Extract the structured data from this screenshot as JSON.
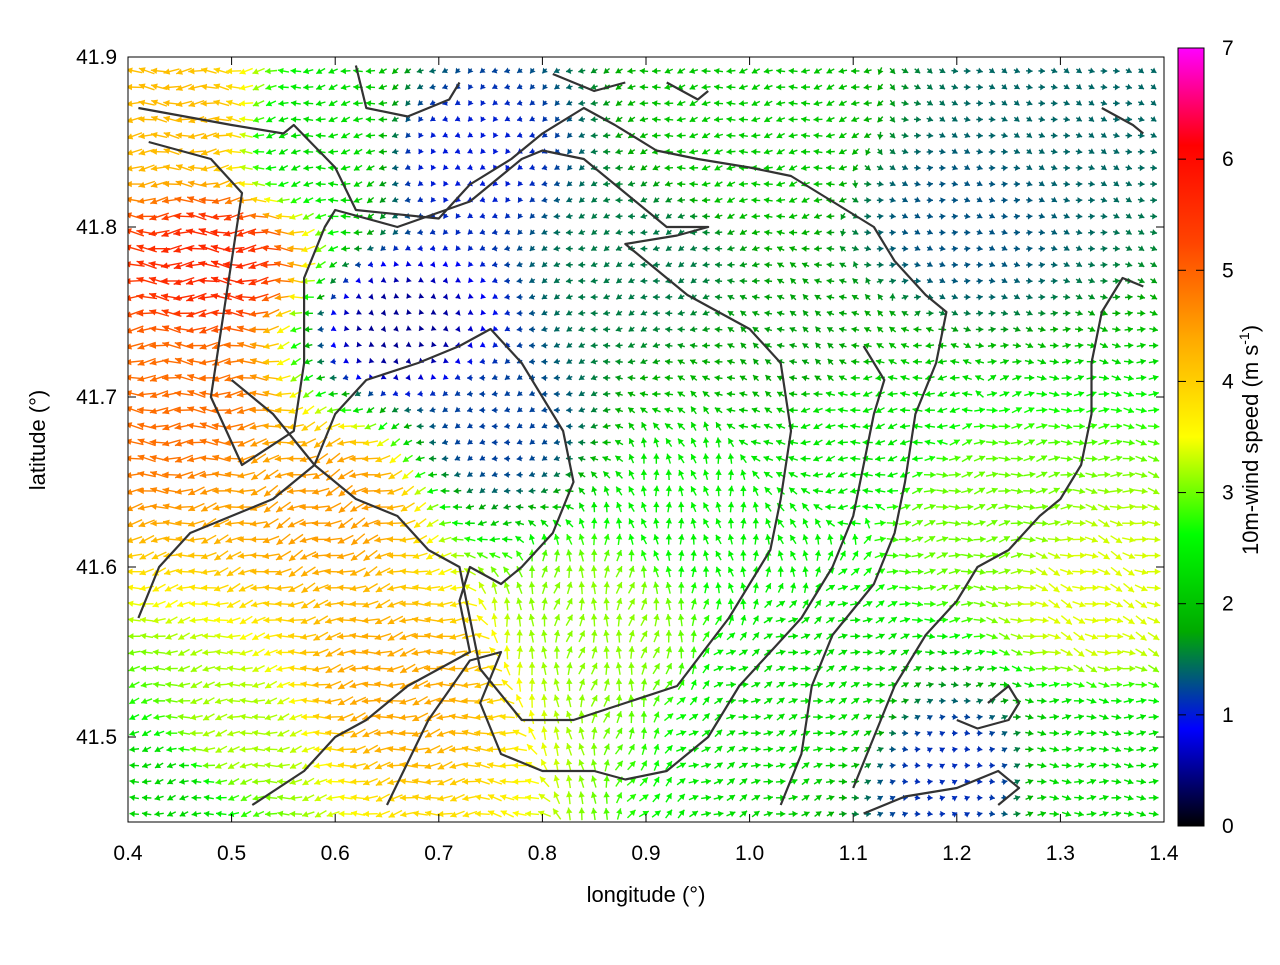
{
  "chart_data": {
    "type": "vector-field",
    "xlabel": "longitude (°)",
    "ylabel": "latitude (°)",
    "xlim": [
      0.4,
      1.4
    ],
    "ylim": [
      41.45,
      41.9
    ],
    "xticks": [
      "0.4",
      "0.5",
      "0.6",
      "0.7",
      "0.8",
      "0.9",
      "1.0",
      "1.1",
      "1.2",
      "1.3",
      "1.4"
    ],
    "yticks": [
      "41.5",
      "41.6",
      "41.7",
      "41.8",
      "41.9"
    ],
    "colorbar": {
      "label_main": "10m-wind speed (m s",
      "label_sup": "-1",
      "label_close": ")",
      "range": [
        0,
        7
      ],
      "ticks": [
        "0",
        "1",
        "2",
        "3",
        "4",
        "5",
        "6",
        "7"
      ],
      "stops": [
        "#000000",
        "#0000ff",
        "#00aa00",
        "#00ff00",
        "#ffff00",
        "#ffaa00",
        "#ff4400",
        "#ff0000",
        "#ff00ff"
      ]
    },
    "grid_step": [
      0.012,
      0.0095
    ],
    "wind_regions": [
      {
        "lon": 0.48,
        "lat": 41.78,
        "speed": 5.6,
        "dir_deg": 180
      },
      {
        "lon": 0.45,
        "lat": 41.7,
        "speed": 4.9,
        "dir_deg": 180
      },
      {
        "lon": 0.45,
        "lat": 41.86,
        "speed": 4.2,
        "dir_deg": 180
      },
      {
        "lon": 0.6,
        "lat": 41.64,
        "speed": 4.5,
        "dir_deg": 200
      },
      {
        "lon": 0.65,
        "lat": 41.53,
        "speed": 4.4,
        "dir_deg": 190
      },
      {
        "lon": 0.5,
        "lat": 41.5,
        "speed": 3.2,
        "dir_deg": 190
      },
      {
        "lon": 0.43,
        "lat": 41.47,
        "speed": 2.2,
        "dir_deg": 190
      },
      {
        "lon": 0.58,
        "lat": 41.85,
        "speed": 2.3,
        "dir_deg": 190
      },
      {
        "lon": 0.66,
        "lat": 41.74,
        "speed": 0.5,
        "dir_deg": 210
      },
      {
        "lon": 0.72,
        "lat": 41.84,
        "speed": 1.0,
        "dir_deg": 220
      },
      {
        "lon": 0.75,
        "lat": 41.68,
        "speed": 1.2,
        "dir_deg": 200
      },
      {
        "lon": 0.86,
        "lat": 41.57,
        "speed": 3.1,
        "dir_deg": 80
      },
      {
        "lon": 0.9,
        "lat": 41.78,
        "speed": 1.5,
        "dir_deg": 200
      },
      {
        "lon": 0.95,
        "lat": 41.63,
        "speed": 2.5,
        "dir_deg": 100
      },
      {
        "lon": 1.0,
        "lat": 41.85,
        "speed": 2.1,
        "dir_deg": 190
      },
      {
        "lon": 1.05,
        "lat": 41.73,
        "speed": 1.7,
        "dir_deg": 150
      },
      {
        "lon": 1.1,
        "lat": 41.68,
        "speed": 2.4,
        "dir_deg": 190
      },
      {
        "lon": 1.05,
        "lat": 41.52,
        "speed": 2.3,
        "dir_deg": 20
      },
      {
        "lon": 1.2,
        "lat": 41.8,
        "speed": 1.3,
        "dir_deg": 350
      },
      {
        "lon": 1.22,
        "lat": 41.63,
        "speed": 3.0,
        "dir_deg": 10
      },
      {
        "lon": 1.33,
        "lat": 41.58,
        "speed": 3.4,
        "dir_deg": 340
      },
      {
        "lon": 1.2,
        "lat": 41.48,
        "speed": 1.1,
        "dir_deg": 10
      },
      {
        "lon": 1.33,
        "lat": 41.48,
        "speed": 2.3,
        "dir_deg": 0
      },
      {
        "lon": 1.3,
        "lat": 41.88,
        "speed": 1.4,
        "dir_deg": 340
      }
    ],
    "boundary_lines": [
      [
        [
          0.41,
          41.87
        ],
        [
          0.5,
          41.86
        ],
        [
          0.55,
          41.855
        ],
        [
          0.56,
          41.86
        ],
        [
          0.6,
          41.835
        ],
        [
          0.62,
          41.81
        ],
        [
          0.7,
          41.805
        ],
        [
          0.73,
          41.825
        ],
        [
          0.77,
          41.84
        ],
        [
          0.8,
          41.855
        ],
        [
          0.84,
          41.87
        ],
        [
          0.87,
          41.86
        ],
        [
          0.91,
          41.845
        ],
        [
          0.95,
          41.84
        ],
        [
          1.0,
          41.835
        ],
        [
          1.04,
          41.83
        ],
        [
          1.08,
          41.815
        ],
        [
          1.12,
          41.8
        ],
        [
          1.14,
          41.78
        ],
        [
          1.17,
          41.76
        ],
        [
          1.19,
          41.75
        ],
        [
          1.18,
          41.72
        ],
        [
          1.16,
          41.69
        ],
        [
          1.15,
          41.65
        ],
        [
          1.14,
          41.62
        ],
        [
          1.12,
          41.59
        ],
        [
          1.08,
          41.56
        ],
        [
          1.06,
          41.53
        ],
        [
          1.05,
          41.49
        ],
        [
          1.03,
          41.46
        ]
      ],
      [
        [
          0.42,
          41.85
        ],
        [
          0.48,
          41.84
        ],
        [
          0.51,
          41.82
        ],
        [
          0.5,
          41.78
        ],
        [
          0.49,
          41.74
        ],
        [
          0.48,
          41.7
        ],
        [
          0.51,
          41.66
        ],
        [
          0.56,
          41.68
        ],
        [
          0.57,
          41.72
        ],
        [
          0.57,
          41.77
        ],
        [
          0.59,
          41.8
        ],
        [
          0.6,
          41.81
        ],
        [
          0.66,
          41.8
        ],
        [
          0.73,
          41.815
        ],
        [
          0.76,
          41.83
        ],
        [
          0.78,
          41.84
        ],
        [
          0.8,
          41.845
        ],
        [
          0.84,
          41.84
        ],
        [
          0.88,
          41.82
        ],
        [
          0.92,
          41.8
        ],
        [
          0.96,
          41.8
        ],
        [
          0.93,
          41.795
        ],
        [
          0.88,
          41.79
        ],
        [
          0.9,
          41.78
        ],
        [
          0.94,
          41.76
        ],
        [
          0.97,
          41.75
        ],
        [
          1.0,
          41.74
        ],
        [
          1.03,
          41.72
        ],
        [
          1.04,
          41.68
        ],
        [
          1.03,
          41.64
        ],
        [
          1.02,
          41.61
        ],
        [
          0.98,
          41.57
        ],
        [
          0.93,
          41.53
        ],
        [
          0.88,
          41.52
        ],
        [
          0.83,
          41.51
        ],
        [
          0.78,
          41.51
        ],
        [
          0.74,
          41.54
        ],
        [
          0.72,
          41.6
        ],
        [
          0.69,
          41.61
        ],
        [
          0.66,
          41.63
        ],
        [
          0.62,
          41.64
        ],
        [
          0.58,
          41.66
        ],
        [
          0.54,
          41.69
        ],
        [
          0.5,
          41.71
        ]
      ],
      [
        [
          0.41,
          41.57
        ],
        [
          0.43,
          41.6
        ],
        [
          0.46,
          41.62
        ],
        [
          0.5,
          41.63
        ],
        [
          0.54,
          41.64
        ],
        [
          0.58,
          41.66
        ],
        [
          0.6,
          41.69
        ],
        [
          0.63,
          41.71
        ],
        [
          0.68,
          41.72
        ],
        [
          0.72,
          41.73
        ],
        [
          0.75,
          41.74
        ],
        [
          0.78,
          41.72
        ],
        [
          0.8,
          41.7
        ],
        [
          0.82,
          41.68
        ],
        [
          0.83,
          41.65
        ],
        [
          0.81,
          41.62
        ],
        [
          0.78,
          41.6
        ],
        [
          0.76,
          41.59
        ],
        [
          0.73,
          41.6
        ],
        [
          0.72,
          41.58
        ],
        [
          0.73,
          41.55
        ],
        [
          0.7,
          41.54
        ],
        [
          0.67,
          41.53
        ],
        [
          0.63,
          41.51
        ],
        [
          0.6,
          41.5
        ],
        [
          0.57,
          41.48
        ],
        [
          0.52,
          41.46
        ]
      ],
      [
        [
          0.65,
          41.46
        ],
        [
          0.69,
          41.51
        ],
        [
          0.73,
          41.545
        ],
        [
          0.76,
          41.55
        ],
        [
          0.74,
          41.52
        ],
        [
          0.76,
          41.49
        ],
        [
          0.8,
          41.48
        ],
        [
          0.85,
          41.48
        ],
        [
          0.88,
          41.475
        ],
        [
          0.92,
          41.48
        ],
        [
          0.96,
          41.5
        ],
        [
          0.99,
          41.53
        ],
        [
          1.02,
          41.55
        ],
        [
          1.05,
          41.57
        ],
        [
          1.08,
          41.6
        ],
        [
          1.1,
          41.63
        ],
        [
          1.11,
          41.66
        ],
        [
          1.12,
          41.69
        ],
        [
          1.13,
          41.71
        ],
        [
          1.11,
          41.73
        ]
      ],
      [
        [
          1.11,
          41.455
        ],
        [
          1.15,
          41.465
        ],
        [
          1.2,
          41.47
        ],
        [
          1.24,
          41.48
        ],
        [
          1.26,
          41.47
        ],
        [
          1.24,
          41.46
        ]
      ],
      [
        [
          1.2,
          41.51
        ],
        [
          1.22,
          41.505
        ],
        [
          1.25,
          41.51
        ],
        [
          1.26,
          41.52
        ],
        [
          1.25,
          41.53
        ],
        [
          1.23,
          41.52
        ]
      ],
      [
        [
          1.38,
          41.765
        ],
        [
          1.36,
          41.77
        ],
        [
          1.34,
          41.75
        ],
        [
          1.33,
          41.72
        ],
        [
          1.33,
          41.69
        ],
        [
          1.32,
          41.66
        ],
        [
          1.3,
          41.64
        ],
        [
          1.28,
          41.63
        ],
        [
          1.25,
          41.61
        ],
        [
          1.22,
          41.6
        ],
        [
          1.2,
          41.58
        ],
        [
          1.17,
          41.56
        ],
        [
          1.14,
          41.53
        ],
        [
          1.12,
          41.5
        ],
        [
          1.1,
          41.47
        ]
      ],
      [
        [
          0.62,
          41.895
        ],
        [
          0.63,
          41.87
        ],
        [
          0.67,
          41.865
        ],
        [
          0.71,
          41.875
        ],
        [
          0.72,
          41.885
        ]
      ],
      [
        [
          0.81,
          41.89
        ],
        [
          0.85,
          41.88
        ],
        [
          0.88,
          41.885
        ]
      ],
      [
        [
          0.92,
          41.885
        ],
        [
          0.95,
          41.875
        ],
        [
          0.96,
          41.88
        ]
      ],
      [
        [
          1.34,
          41.87
        ],
        [
          1.37,
          41.86
        ],
        [
          1.38,
          41.855
        ]
      ]
    ]
  }
}
